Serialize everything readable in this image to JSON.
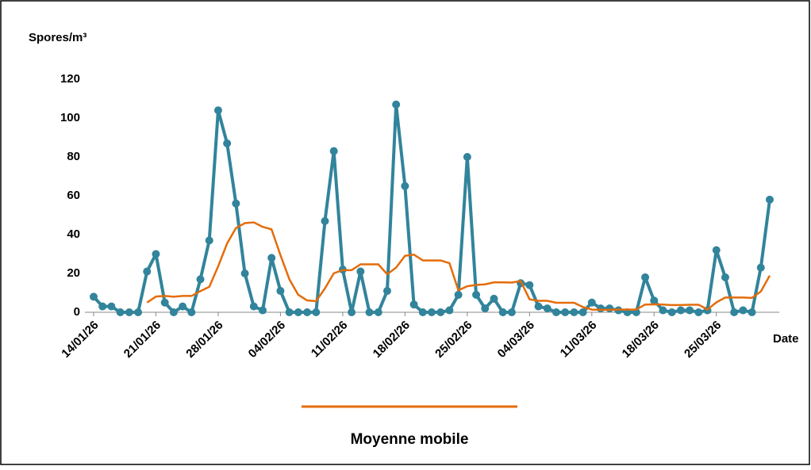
{
  "chart_data": {
    "type": "line",
    "y_label": "Spores/m³",
    "x_label": "Date",
    "categories": [
      "14/01/26",
      null,
      null,
      null,
      null,
      null,
      null,
      "21/01/26",
      null,
      null,
      null,
      null,
      null,
      null,
      "28/01/26",
      null,
      null,
      null,
      null,
      null,
      null,
      "04/02/26",
      null,
      null,
      null,
      null,
      null,
      null,
      "11/02/26",
      null,
      null,
      null,
      null,
      null,
      null,
      "18/02/26",
      null,
      null,
      null,
      null,
      null,
      null,
      "25/02/26",
      null,
      null,
      null,
      null,
      null,
      null,
      "04/03/26",
      null,
      null,
      null,
      null,
      null,
      null,
      "11/03/26",
      null,
      null,
      null,
      null,
      null,
      null,
      "18/03/26",
      null,
      null,
      null,
      null,
      null,
      null,
      "25/03/26",
      null,
      null,
      null,
      null,
      null,
      null
    ],
    "series": [
      {
        "color": "#31849b",
        "markers": true,
        "values": [
          8,
          3,
          3,
          0,
          0,
          0,
          21,
          30,
          5,
          0,
          3,
          0,
          17,
          37,
          104,
          87,
          56,
          20,
          3,
          1,
          28,
          11,
          0,
          0,
          0,
          0,
          47,
          83,
          22,
          0,
          21,
          0,
          0,
          11,
          107,
          65,
          4,
          0,
          0,
          0,
          1,
          9,
          80,
          9,
          2,
          7,
          0,
          0,
          15,
          14,
          3,
          2,
          0,
          0,
          0,
          0,
          5,
          2,
          2,
          1,
          0,
          0,
          18,
          6,
          1,
          0,
          1,
          1,
          0,
          1,
          32,
          18,
          0,
          1,
          0,
          23,
          58
        ]
      },
      {
        "name": "Moyenne mobile",
        "color": "#e46c0a",
        "markers": false,
        "values": [
          null,
          null,
          null,
          null,
          null,
          null,
          5,
          8.1,
          8.4,
          8,
          8.4,
          8.4,
          10.9,
          13.1,
          23.7,
          35.4,
          43.4,
          45.9,
          46.3,
          44,
          42.7,
          29.4,
          17,
          9,
          6.1,
          5.7,
          12.3,
          20.1,
          21.7,
          21.7,
          24.7,
          24.7,
          24.7,
          19.6,
          23,
          29.1,
          29.7,
          26.7,
          26.7,
          26.7,
          25.3,
          11.3,
          13.4,
          14.1,
          14.4,
          15.4,
          15.4,
          15.3,
          16.1,
          6.7,
          5.9,
          5.9,
          4.9,
          4.9,
          4.9,
          2.7,
          1.4,
          1.3,
          1.3,
          1.4,
          1.4,
          1.4,
          4,
          4.1,
          4,
          3.7,
          3.7,
          3.9,
          3.9,
          1.4,
          5.1,
          7.6,
          7.6,
          7.6,
          7.4,
          10.7,
          18.9
        ]
      }
    ],
    "ylim": [
      0,
      120
    ],
    "yticks": [
      0,
      20,
      40,
      60,
      80,
      100,
      120
    ],
    "grid": false,
    "legend": "bottom"
  }
}
